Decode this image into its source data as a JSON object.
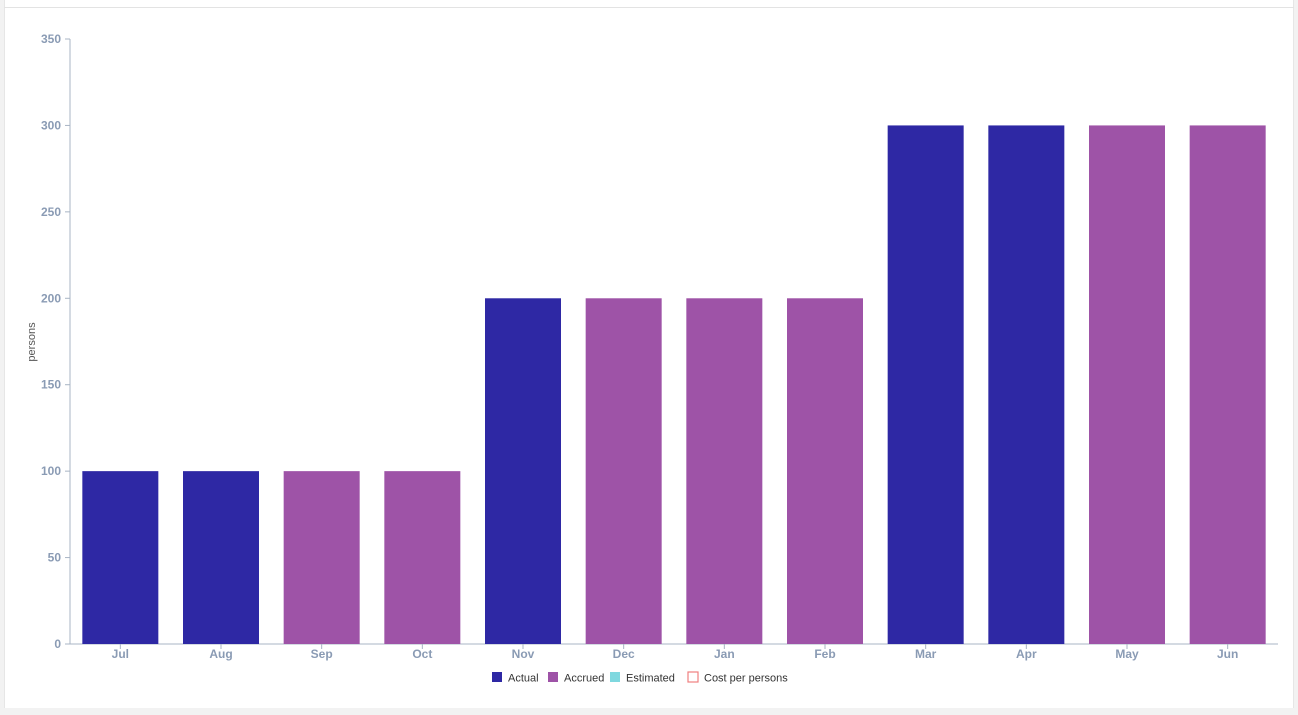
{
  "chart_data": {
    "type": "bar",
    "title": "",
    "xlabel": "",
    "ylabel": "persons",
    "ylim": [
      0,
      350
    ],
    "yticks": [
      0,
      50,
      100,
      150,
      200,
      250,
      300,
      350
    ],
    "grid": false,
    "legend_position": "bottom",
    "categories": [
      "Jul",
      "Aug",
      "Sep",
      "Oct",
      "Nov",
      "Dec",
      "Jan",
      "Feb",
      "Mar",
      "Apr",
      "May",
      "Jun"
    ],
    "values": [
      100,
      100,
      100,
      100,
      200,
      200,
      200,
      200,
      300,
      300,
      300,
      300
    ],
    "bar_series": [
      "Actual",
      "Actual",
      "Accrued",
      "Accrued",
      "Actual",
      "Accrued",
      "Accrued",
      "Accrued",
      "Actual",
      "Actual",
      "Accrued",
      "Accrued"
    ],
    "legend": [
      {
        "name": "Actual",
        "color": "#2e28a4",
        "style": "filled"
      },
      {
        "name": "Accrued",
        "color": "#9e53a7",
        "style": "filled"
      },
      {
        "name": "Estimated",
        "color": "#7fd8df",
        "style": "filled"
      },
      {
        "name": "Cost per persons",
        "color": "#f08080",
        "style": "outline"
      }
    ]
  }
}
